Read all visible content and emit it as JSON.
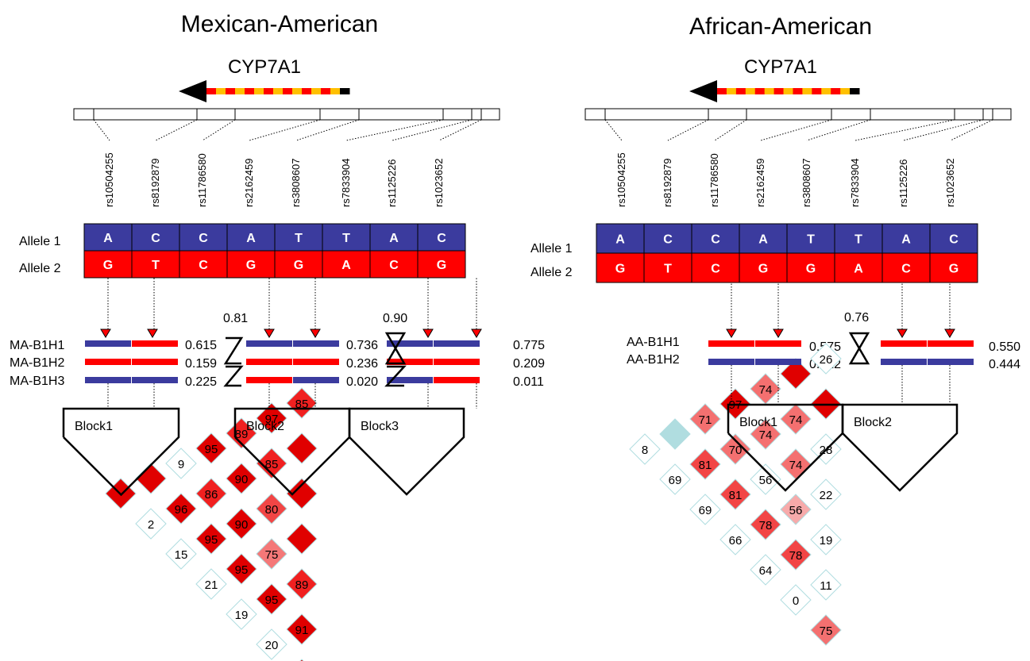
{
  "colors": {
    "allele1": "#3b3b9e",
    "allele2": "#ff0000",
    "gene_yellow": "#ffc000",
    "ld_border": "#b0dde0",
    "ld_teal": "#b0dde0"
  },
  "snps": [
    "rs10504255",
    "rs8192879",
    "rs11786580",
    "rs2162459",
    "rs3808607",
    "rs7833904",
    "rs1125226",
    "rs1023652"
  ],
  "allele1": [
    "A",
    "C",
    "C",
    "A",
    "T",
    "T",
    "A",
    "C"
  ],
  "allele2": [
    "G",
    "T",
    "C",
    "G",
    "G",
    "A",
    "C",
    "G"
  ],
  "allele_labels": [
    "Allele 1",
    "Allele 2"
  ],
  "gene": "CYP7A1",
  "panels": [
    {
      "id": "ma",
      "title": "Mexican-American",
      "hap_labels": [
        "MA-B1H1",
        "MA-B1H2",
        "MA-B1H3"
      ],
      "block1_freqs": [
        "0.615",
        "0.159",
        "0.225"
      ],
      "block2_freqs": [
        "0.736",
        "0.236",
        "0.020"
      ],
      "block3_freqs": [
        "0.775",
        "0.209",
        "0.011"
      ],
      "link_values": [
        "0.81",
        "0.90"
      ],
      "block_labels": [
        "Block1",
        "Block2",
        "Block3"
      ],
      "ld_values": [
        [
          null,
          2,
          15,
          21,
          19,
          20,
          null
        ],
        [
          null,
          96,
          95,
          95,
          95,
          91
        ],
        [
          9,
          86,
          90,
          75,
          89
        ],
        [
          95,
          90,
          80,
          null
        ],
        [
          89,
          85,
          null
        ],
        [
          97,
          null
        ],
        [
          85
        ]
      ]
    },
    {
      "id": "aa",
      "title": "African-American",
      "hap_labels": [
        "AA-B1H1",
        "AA-B1H2"
      ],
      "block1_freqs": [
        "0.575",
        "0.412"
      ],
      "block2_freqs": [
        "0.550",
        "0.444"
      ],
      "link_values": [
        "0.76"
      ],
      "block_labels": [
        "Block1",
        "Block2"
      ],
      "ld_values": [
        [
          8,
          69,
          69,
          66,
          64,
          0,
          75
        ],
        [
          null,
          81,
          81,
          78,
          78,
          11
        ],
        [
          71,
          70,
          56,
          56,
          19
        ],
        [
          97,
          74,
          74,
          22
        ],
        [
          74,
          74,
          28
        ],
        [
          null,
          null
        ],
        [
          26
        ]
      ]
    }
  ]
}
